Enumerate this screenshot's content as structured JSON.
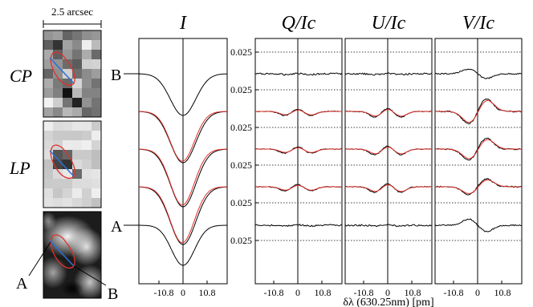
{
  "figure": {
    "scale_bar_label": "2.5 arcsec",
    "map_labels": [
      "CP",
      "LP"
    ],
    "slit_end_labels": [
      "A",
      "B"
    ],
    "panel_titles": [
      "I",
      "Q/Ic",
      "U/Ic",
      "V/Ic"
    ],
    "ytick_label": "0.025",
    "xtick_labels": [
      "-10.8",
      "0",
      "10.8"
    ],
    "xlabel": "δλ (630.25nm) [pm]",
    "profile_end_labels": [
      "B",
      "A"
    ],
    "colors": {
      "observed": "#000000",
      "fit": "#e0302a",
      "contour": "#e0302a",
      "slit": "#2f6fd6"
    }
  }
}
